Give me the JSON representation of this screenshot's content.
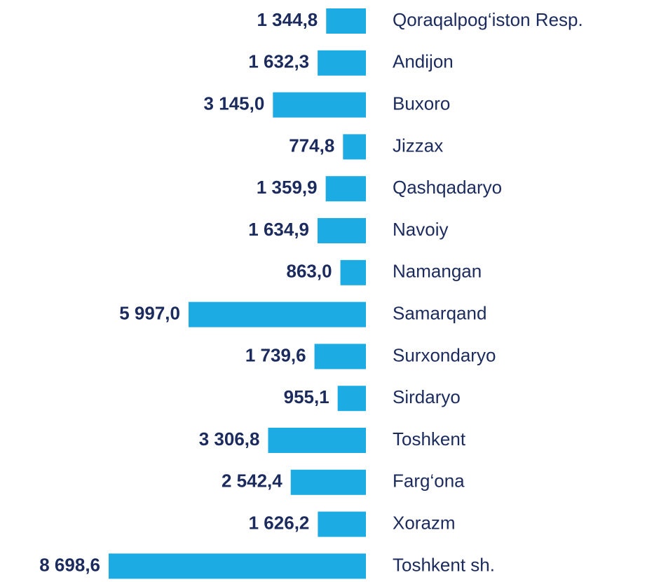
{
  "chart_data": {
    "type": "bar",
    "orientation": "horizontal",
    "color": "#1cabe2",
    "categories": [
      "Qoraqalpog‘iston Resp.",
      "Andijon",
      "Buxoro",
      "Jizzax",
      "Qashqadaryo",
      "Navoiy",
      "Namangan",
      "Samarqand",
      "Surxondaryo",
      "Sirdaryo",
      "Toshkent",
      "Farg‘ona",
      "Xorazm",
      "Toshkent sh."
    ],
    "values": [
      1344.8,
      1632.3,
      3145.0,
      774.8,
      1359.9,
      1634.9,
      863.0,
      5997.0,
      1739.6,
      955.1,
      3306.8,
      2542.4,
      1626.2,
      8698.6
    ],
    "value_labels": [
      "1 344,8",
      "1 632,3",
      "3 145,0",
      "774,8",
      "1 359,9",
      "1 634,9",
      "863,0",
      "5 997,0",
      "1 739,6",
      "955,1",
      "3 306,8",
      "2 542,4",
      "1 626,2",
      "8 698,6"
    ]
  }
}
